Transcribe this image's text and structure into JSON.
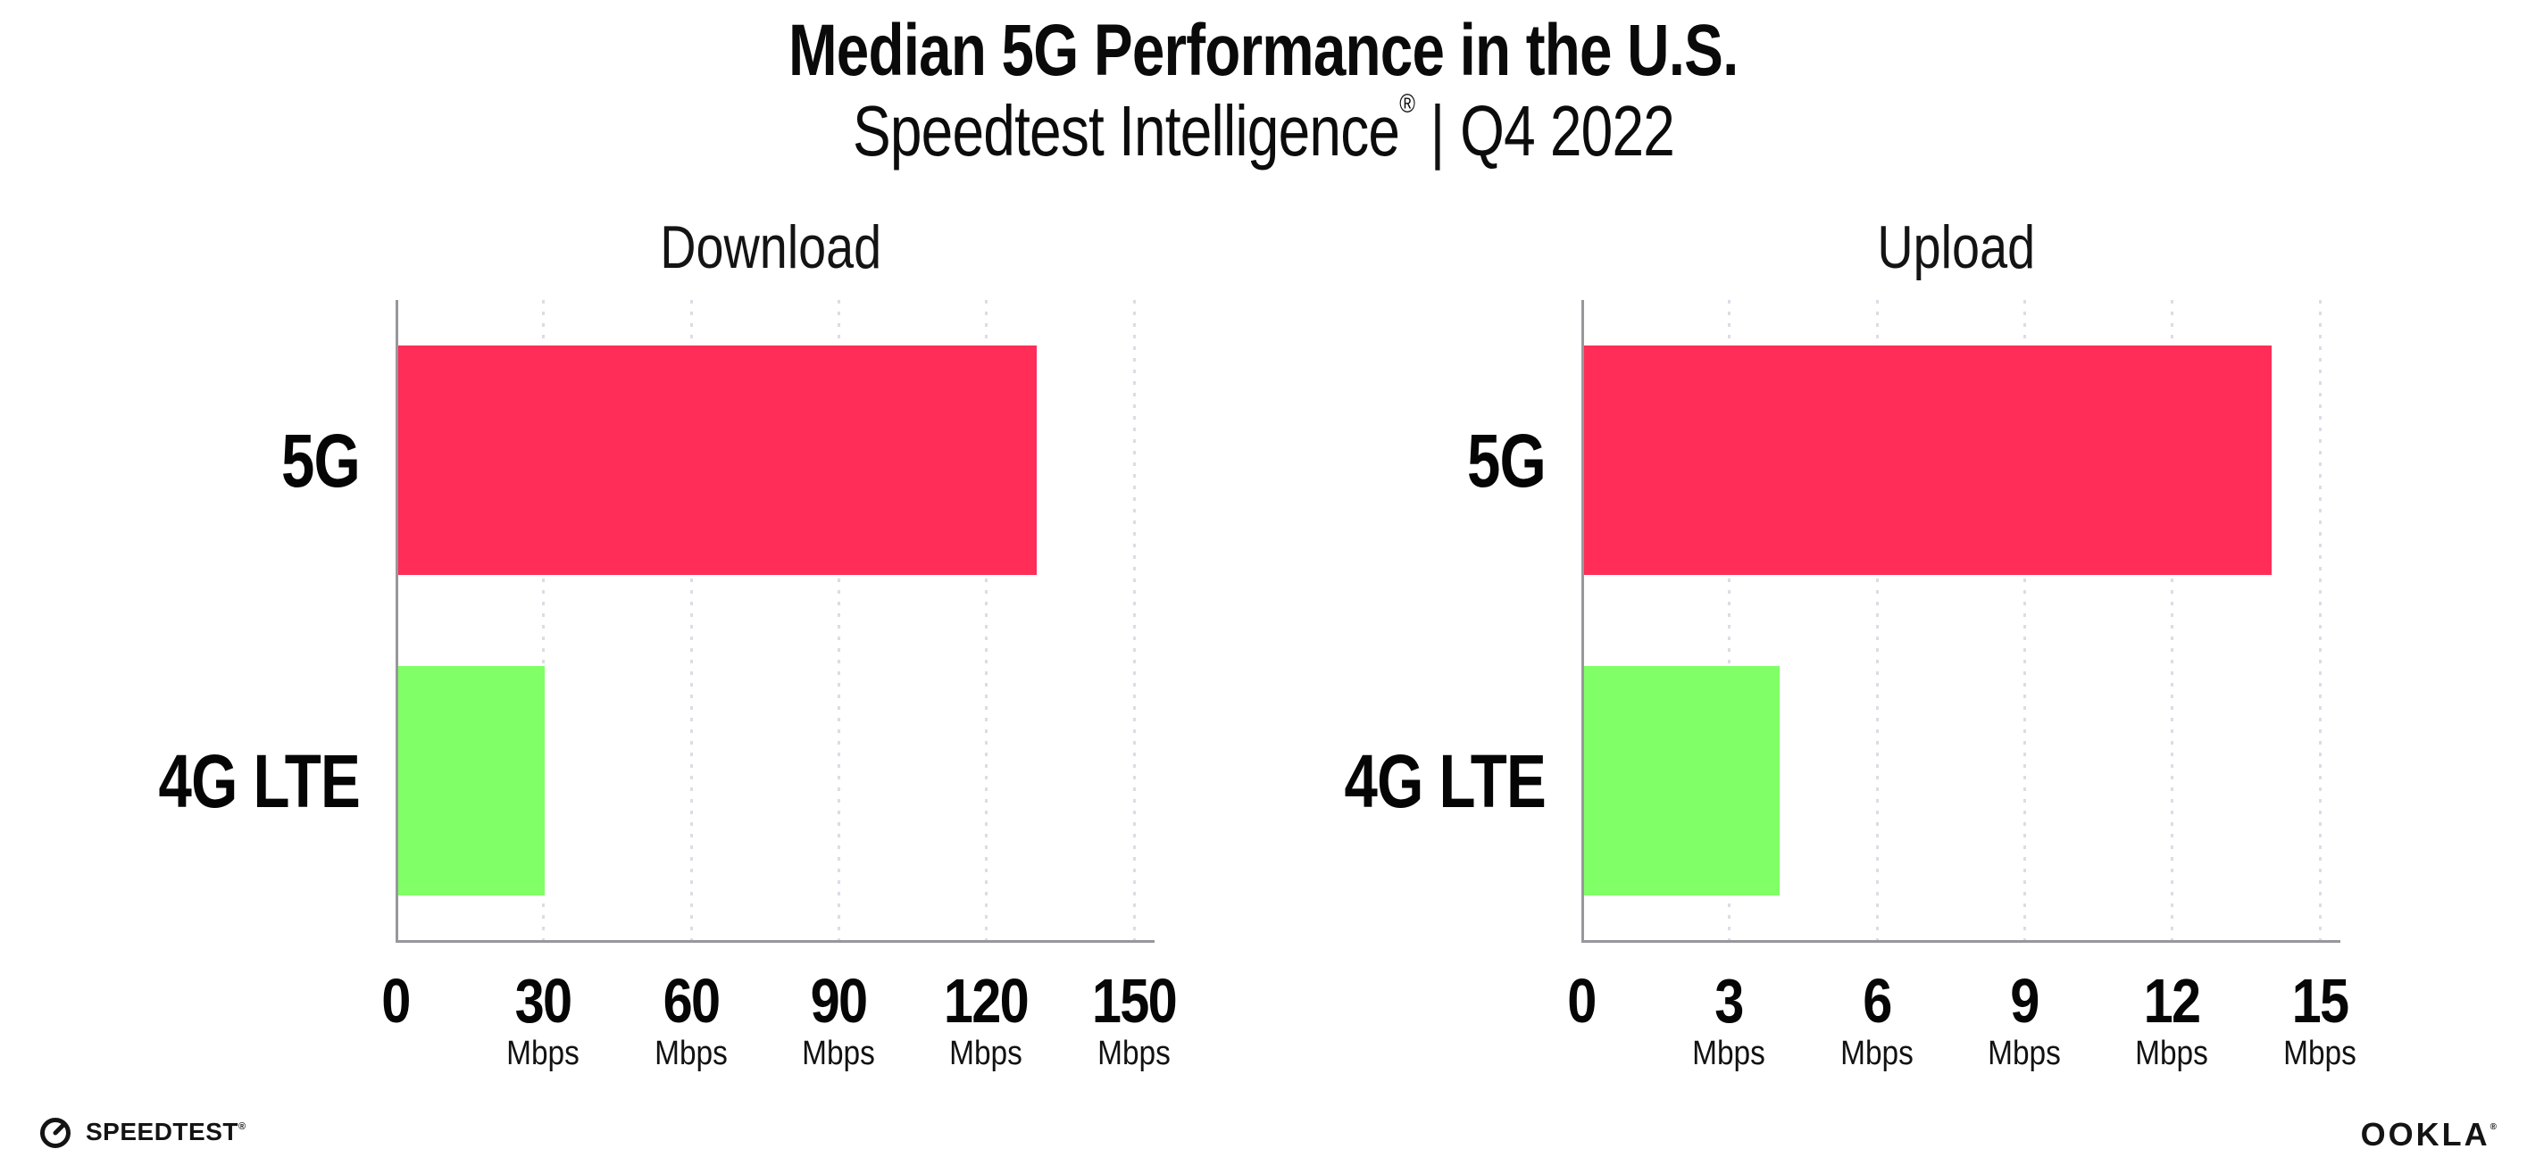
{
  "header": {
    "title": "Median 5G Performance in the U.S.",
    "subtitle_brand": "Speedtest Intelligence",
    "subtitle_reg": "®",
    "subtitle_divider": "|",
    "subtitle_period": "Q4 2022"
  },
  "colors": {
    "bar_5g": "#ff2d58",
    "bar_4g_lte": "#80ff66",
    "axis": "#97979c",
    "gridline": "#dcdce6",
    "text": "#0a0a0a"
  },
  "chart_data": [
    {
      "type": "bar",
      "orientation": "horizontal",
      "title": "Download",
      "categories": [
        "5G",
        "4G LTE"
      ],
      "values": [
        130,
        30
      ],
      "unit": "Mbps",
      "xlim": [
        0,
        150
      ],
      "xticks": [
        0,
        30,
        60,
        90,
        120,
        150
      ],
      "grid": "vertical dotted gridlines at each tick",
      "legend": "none",
      "bar_colors": [
        "#ff2d58",
        "#80ff66"
      ]
    },
    {
      "type": "bar",
      "orientation": "horizontal",
      "title": "Upload",
      "categories": [
        "5G",
        "4G LTE"
      ],
      "values": [
        14,
        4
      ],
      "unit": "Mbps",
      "xlim": [
        0,
        15
      ],
      "xticks": [
        0,
        3,
        6,
        9,
        12,
        15
      ],
      "grid": "vertical dotted gridlines at each tick",
      "legend": "none",
      "bar_colors": [
        "#ff2d58",
        "#80ff66"
      ]
    }
  ],
  "footer": {
    "speedtest_label": "SPEEDTEST",
    "speedtest_mark": "®",
    "ookla_label": "OOKLA",
    "ookla_mark": "®"
  }
}
